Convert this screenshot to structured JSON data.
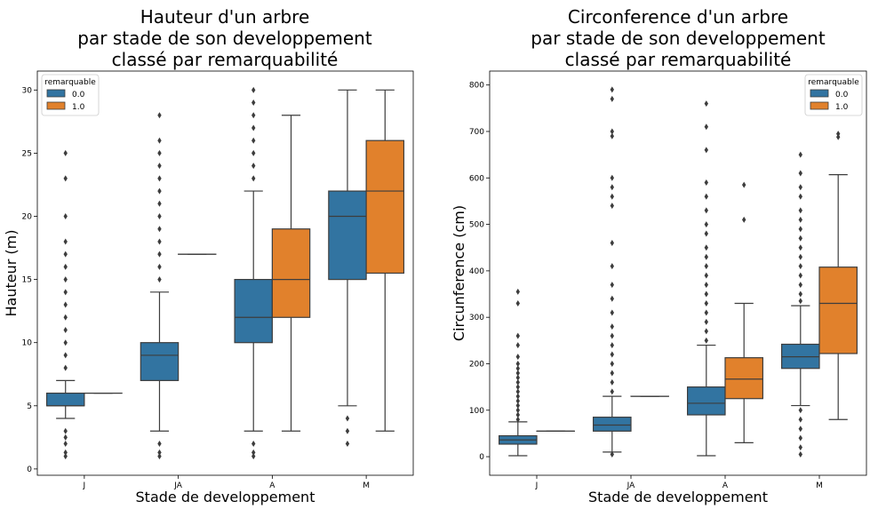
{
  "chart_data": [
    {
      "type": "box",
      "title": [
        "Hauteur d'un arbre",
        "par stade de son developpement",
        "classé par remarquabilité"
      ],
      "xlabel": "Stade de developpement",
      "ylabel": "Hauteur (m)",
      "categories": [
        "J",
        "JA",
        "A",
        "M"
      ],
      "ylim": [
        -0.5,
        31.5
      ],
      "yticks": [
        0,
        5,
        10,
        15,
        20,
        25,
        30
      ],
      "legend": {
        "title": "remarquable",
        "placement": "top-left"
      },
      "series": [
        {
          "name": "0.0",
          "color": "#3274a1",
          "boxes": [
            {
              "q1": 5,
              "median": 5,
              "q3": 6,
              "wlo": 4,
              "whi": 7,
              "outliers": [
                8,
                9,
                10,
                11,
                12,
                13,
                14,
                15,
                16,
                17,
                18,
                20,
                23,
                25,
                3,
                2.5,
                2,
                1.3,
                1
              ]
            },
            {
              "q1": 7,
              "median": 9,
              "q3": 10,
              "wlo": 3,
              "whi": 14,
              "outliers": [
                15,
                16,
                17,
                18,
                19,
                20,
                21,
                22,
                23,
                24,
                25,
                26,
                28,
                2,
                1.3,
                1
              ]
            },
            {
              "q1": 10,
              "median": 12,
              "q3": 15,
              "wlo": 3,
              "whi": 22,
              "outliers": [
                23,
                24,
                25,
                26,
                27,
                28,
                29,
                30,
                2,
                1.3,
                1
              ]
            },
            {
              "q1": 15,
              "median": 20,
              "q3": 22,
              "wlo": 5,
              "whi": 30,
              "outliers": [
                4,
                3,
                2
              ]
            }
          ]
        },
        {
          "name": "1.0",
          "color": "#e1812c",
          "boxes": [
            {
              "q1": 6,
              "median": 6,
              "q3": 6,
              "wlo": 6,
              "whi": 6,
              "outliers": []
            },
            {
              "q1": 17,
              "median": 17,
              "q3": 17,
              "wlo": 17,
              "whi": 17,
              "outliers": []
            },
            {
              "q1": 12,
              "median": 15,
              "q3": 19,
              "wlo": 3,
              "whi": 28,
              "outliers": []
            },
            {
              "q1": 15.5,
              "median": 22,
              "q3": 26,
              "wlo": 3,
              "whi": 30,
              "outliers": []
            }
          ]
        }
      ]
    },
    {
      "type": "box",
      "title": [
        "Circonference d'un arbre",
        "par stade de son developpement",
        "classé par remarquabilité"
      ],
      "xlabel": "Stade de developpement",
      "ylabel": "Circunference (cm)",
      "categories": [
        "J",
        "JA",
        "A",
        "M"
      ],
      "ylim": [
        -40,
        830
      ],
      "yticks": [
        0,
        100,
        200,
        300,
        400,
        500,
        600,
        700,
        800
      ],
      "legend": {
        "title": "remarquable",
        "placement": "top-right"
      },
      "series": [
        {
          "name": "0.0",
          "color": "#3274a1",
          "boxes": [
            {
              "q1": 27,
              "median": 36,
              "q3": 45,
              "wlo": 2,
              "whi": 75,
              "outliers": [
                80,
                90,
                100,
                110,
                120,
                130,
                140,
                150,
                160,
                170,
                180,
                190,
                200,
                215,
                240,
                260,
                330,
                355
              ]
            },
            {
              "q1": 55,
              "median": 68,
              "q3": 85,
              "wlo": 10,
              "whi": 130,
              "outliers": [
                140,
                160,
                180,
                200,
                220,
                240,
                260,
                280,
                310,
                340,
                370,
                410,
                460,
                540,
                560,
                580,
                600,
                690,
                700,
                770,
                790,
                5
              ]
            },
            {
              "q1": 90,
              "median": 115,
              "q3": 150,
              "wlo": 2,
              "whi": 240,
              "outliers": [
                250,
                270,
                290,
                310,
                330,
                350,
                370,
                390,
                410,
                430,
                450,
                480,
                500,
                530,
                560,
                590,
                660,
                710,
                760
              ]
            },
            {
              "q1": 190,
              "median": 215,
              "q3": 242,
              "wlo": 110,
              "whi": 325,
              "outliers": [
                335,
                350,
                370,
                390,
                410,
                430,
                450,
                470,
                490,
                510,
                530,
                560,
                580,
                610,
                650,
                100,
                80,
                60,
                40,
                20,
                5
              ]
            }
          ]
        },
        {
          "name": "1.0",
          "color": "#e1812c",
          "boxes": [
            {
              "q1": 55,
              "median": 55,
              "q3": 55,
              "wlo": 55,
              "whi": 55,
              "outliers": []
            },
            {
              "q1": 130,
              "median": 130,
              "q3": 130,
              "wlo": 130,
              "whi": 130,
              "outliers": []
            },
            {
              "q1": 125,
              "median": 167,
              "q3": 213,
              "wlo": 30,
              "whi": 330,
              "outliers": [
                510,
                585
              ]
            },
            {
              "q1": 222,
              "median": 330,
              "q3": 408,
              "wlo": 80,
              "whi": 607,
              "outliers": [
                688,
                695
              ]
            }
          ]
        }
      ]
    }
  ]
}
